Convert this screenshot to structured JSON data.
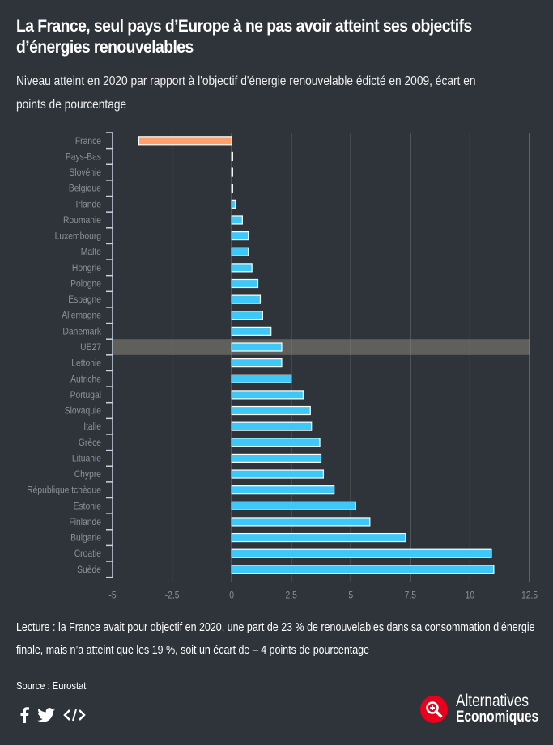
{
  "header": {
    "title": "La France, seul pays d’Europe à ne pas avoir atteint ses objectifs d’énergies renouvelables",
    "subtitle": "Niveau atteint en 2020 par rapport à l'objectif d'énergie renouvelable édicté en 2009, écart en points de pourcentage"
  },
  "chart_data": {
    "type": "bar",
    "orientation": "horizontal",
    "title": "La France, seul pays d’Europe à ne pas avoir atteint ses objectifs d’énergies renouvelables",
    "subtitle": "Niveau atteint en 2020 par rapport à l'objectif d'énergie renouvelable édicté en 2009, écart en points de pourcentage",
    "xlabel": "",
    "ylabel": "",
    "xlim": [
      -5,
      12.5
    ],
    "xticks": [
      -5,
      -2.5,
      0,
      2.5,
      5,
      7.5,
      10,
      12.5
    ],
    "xtick_labels": [
      "-5",
      "-2,5",
      "0",
      "2,5",
      "5",
      "7,5",
      "10",
      "12,5"
    ],
    "grid": true,
    "highlight_category": "UE27",
    "colors": {
      "negative": "#ffa06e",
      "positive": "#3ec8f8",
      "highlight_band": "#5f5f5c",
      "bar_stroke": "#ffffff"
    },
    "categories": [
      "France",
      "Pays-Bas",
      "Slovénie",
      "Belgique",
      "Irlande",
      "Roumanie",
      "Luxembourg",
      "Malte",
      "Hongrie",
      "Pologne",
      "Espagne",
      "Allemagne",
      "Danemark",
      "UE27",
      "Lettonie",
      "Autriche",
      "Portugal",
      "Slovaquie",
      "Italie",
      "Grèce",
      "Lituanie",
      "Chypre",
      "République tchèque",
      "Estonie",
      "Finlande",
      "Bulgarie",
      "Croatie",
      "Suède"
    ],
    "values": [
      -3.9,
      0.0,
      0.0,
      0.0,
      0.15,
      0.45,
      0.7,
      0.7,
      0.85,
      1.1,
      1.2,
      1.3,
      1.65,
      2.1,
      2.1,
      2.5,
      3.0,
      3.3,
      3.35,
      3.7,
      3.75,
      3.85,
      4.3,
      5.2,
      5.8,
      7.3,
      10.9,
      11.0
    ]
  },
  "footer": {
    "reading": "Lecture : la France avait pour objectif en 2020, une part de 23 % de renouvelables dans sa consommation d’énergie finale, mais n’a atteint que les 19 %, soit un écart de – 4 points de pourcentage",
    "source": "Source : Eurostat",
    "social_icons": [
      "facebook-icon",
      "twitter-icon",
      "embed-code-icon"
    ],
    "logo": {
      "line1": "Alternatives",
      "line2": "Economiques",
      "color": "#e8001c"
    }
  }
}
